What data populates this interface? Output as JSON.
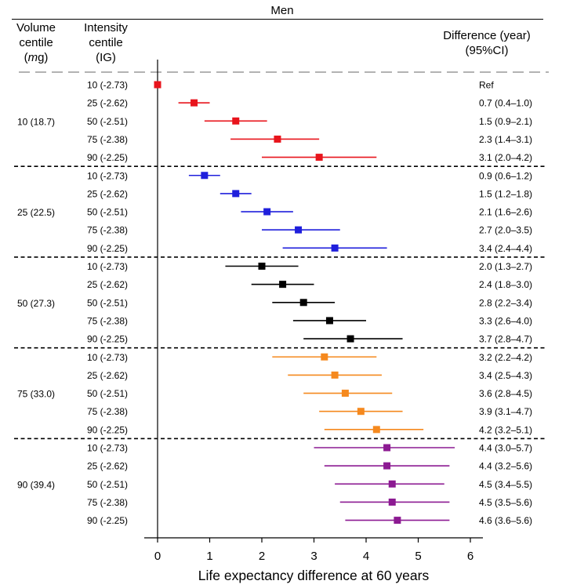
{
  "header": {
    "sex": "Men",
    "volume_centile": [
      "Volume",
      "centile",
      "(mg)"
    ],
    "intensity_centile": [
      "Intensity",
      "centile",
      "(IG)"
    ],
    "difference": [
      "Difference (year)",
      "(95%CI)"
    ]
  },
  "chart_data": {
    "type": "forest",
    "title": "Men",
    "xlabel": "Life expectancy difference at 60 years",
    "xlim": [
      -0.2,
      6.2
    ],
    "xticks": [
      0,
      1,
      2,
      3,
      4,
      5,
      6
    ],
    "legend": "none",
    "groups": [
      {
        "volume": "10 (18.7)",
        "color": "#e8141c",
        "rows": [
          {
            "intensity": "10 (-2.73)",
            "estimate": 0.0,
            "low": 0.0,
            "high": 0.0,
            "label": "Ref"
          },
          {
            "intensity": "25 (-2.62)",
            "estimate": 0.7,
            "low": 0.4,
            "high": 1.0,
            "label": "0.7 (0.4–1.0)"
          },
          {
            "intensity": "50 (-2.51)",
            "estimate": 1.5,
            "low": 0.9,
            "high": 2.1,
            "label": "1.5 (0.9–2.1)"
          },
          {
            "intensity": "75 (-2.38)",
            "estimate": 2.3,
            "low": 1.4,
            "high": 3.1,
            "label": "2.3 (1.4–3.1)"
          },
          {
            "intensity": "90 (-2.25)",
            "estimate": 3.1,
            "low": 2.0,
            "high": 4.2,
            "label": "3.1 (2.0–4.2)"
          }
        ]
      },
      {
        "volume": "25 (22.5)",
        "color": "#1f1fdc",
        "rows": [
          {
            "intensity": "10 (-2.73)",
            "estimate": 0.9,
            "low": 0.6,
            "high": 1.2,
            "label": "0.9 (0.6–1.2)"
          },
          {
            "intensity": "25 (-2.62)",
            "estimate": 1.5,
            "low": 1.2,
            "high": 1.8,
            "label": "1.5 (1.2–1.8)"
          },
          {
            "intensity": "50 (-2.51)",
            "estimate": 2.1,
            "low": 1.6,
            "high": 2.6,
            "label": "2.1 (1.6–2.6)"
          },
          {
            "intensity": "75 (-2.38)",
            "estimate": 2.7,
            "low": 2.0,
            "high": 3.5,
            "label": "2.7 (2.0–3.5)"
          },
          {
            "intensity": "90 (-2.25)",
            "estimate": 3.4,
            "low": 2.4,
            "high": 4.4,
            "label": "3.4 (2.4–4.4)"
          }
        ]
      },
      {
        "volume": "50 (27.3)",
        "color": "#000000",
        "rows": [
          {
            "intensity": "10 (-2.73)",
            "estimate": 2.0,
            "low": 1.3,
            "high": 2.7,
            "label": "2.0 (1.3–2.7)"
          },
          {
            "intensity": "25 (-2.62)",
            "estimate": 2.4,
            "low": 1.8,
            "high": 3.0,
            "label": "2.4 (1.8–3.0)"
          },
          {
            "intensity": "50 (-2.51)",
            "estimate": 2.8,
            "low": 2.2,
            "high": 3.4,
            "label": "2.8 (2.2–3.4)"
          },
          {
            "intensity": "75 (-2.38)",
            "estimate": 3.3,
            "low": 2.6,
            "high": 4.0,
            "label": "3.3 (2.6–4.0)"
          },
          {
            "intensity": "90 (-2.25)",
            "estimate": 3.7,
            "low": 2.8,
            "high": 4.7,
            "label": "3.7 (2.8–4.7)"
          }
        ]
      },
      {
        "volume": "75 (33.0)",
        "color": "#f5891e",
        "rows": [
          {
            "intensity": "10 (-2.73)",
            "estimate": 3.2,
            "low": 2.2,
            "high": 4.2,
            "label": "3.2 (2.2–4.2)"
          },
          {
            "intensity": "25 (-2.62)",
            "estimate": 3.4,
            "low": 2.5,
            "high": 4.3,
            "label": "3.4 (2.5–4.3)"
          },
          {
            "intensity": "50 (-2.51)",
            "estimate": 3.6,
            "low": 2.8,
            "high": 4.5,
            "label": "3.6 (2.8–4.5)"
          },
          {
            "intensity": "75 (-2.38)",
            "estimate": 3.9,
            "low": 3.1,
            "high": 4.7,
            "label": "3.9 (3.1–4.7)"
          },
          {
            "intensity": "90 (-2.25)",
            "estimate": 4.2,
            "low": 3.2,
            "high": 5.1,
            "label": "4.2 (3.2–5.1)"
          }
        ]
      },
      {
        "volume": "90 (39.4)",
        "color": "#8c1a92",
        "rows": [
          {
            "intensity": "10 (-2.73)",
            "estimate": 4.4,
            "low": 3.0,
            "high": 5.7,
            "label": "4.4 (3.0–5.7)"
          },
          {
            "intensity": "25 (-2.62)",
            "estimate": 4.4,
            "low": 3.2,
            "high": 5.6,
            "label": "4.4 (3.2–5.6)"
          },
          {
            "intensity": "50 (-2.51)",
            "estimate": 4.5,
            "low": 3.4,
            "high": 5.5,
            "label": "4.5 (3.4–5.5)"
          },
          {
            "intensity": "75 (-2.38)",
            "estimate": 4.5,
            "low": 3.5,
            "high": 5.6,
            "label": "4.5 (3.5–5.6)"
          },
          {
            "intensity": "90 (-2.25)",
            "estimate": 4.6,
            "low": 3.6,
            "high": 5.6,
            "label": "4.6 (3.6–5.6)"
          }
        ]
      }
    ]
  }
}
